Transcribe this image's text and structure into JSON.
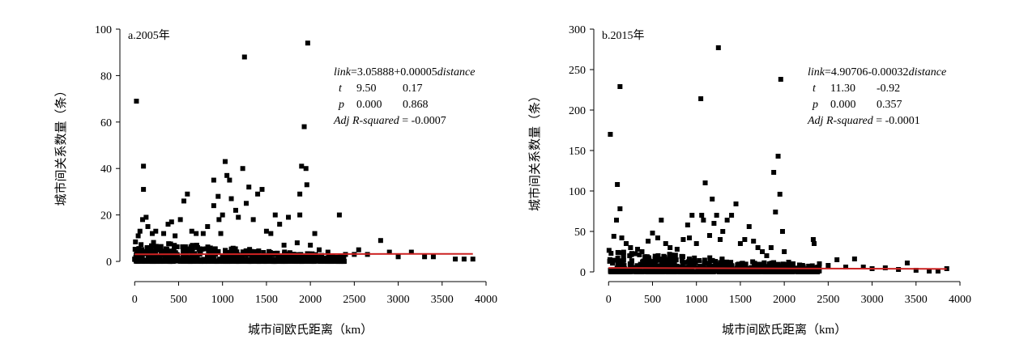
{
  "chart_data": [
    {
      "type": "scatter",
      "panel_label": "a.2005年",
      "xlabel": "城市间欧氏距离（km）",
      "ylabel": "城市间关系数量（条）",
      "xlim": [
        -150,
        4000
      ],
      "ylim": [
        -8,
        100
      ],
      "xticks": [
        "0",
        "500",
        "1000",
        "1500",
        "2000",
        "2500",
        "3000",
        "3500",
        "4000"
      ],
      "yticks": [
        "0",
        "20",
        "40",
        "60",
        "80",
        "100"
      ],
      "marker_color": "#000000",
      "line_color": "#cc2222",
      "regression": {
        "intercept": 3.05888,
        "slope": 5e-05,
        "x_range": [
          0,
          3850
        ]
      },
      "annotation": {
        "equation": {
          "italic_lhs": "link",
          "text": "=3.05888+0.00005",
          "italic_rhs": "distance"
        },
        "t_row": {
          "label": "t",
          "v1": "9.50",
          "v2": "0.17"
        },
        "p_row": {
          "label": "p",
          "v1": "0.000",
          "v2": "0.868"
        },
        "adj_row": {
          "label": "Adj R-squared",
          "value": "= -0.0007"
        }
      },
      "points": [
        {
          "x": 20,
          "y": 69
        },
        {
          "x": 100,
          "y": 41
        },
        {
          "x": 100,
          "y": 31
        },
        {
          "x": 130,
          "y": 19
        },
        {
          "x": 90,
          "y": 18
        },
        {
          "x": 150,
          "y": 15
        },
        {
          "x": 60,
          "y": 13
        },
        {
          "x": 200,
          "y": 12
        },
        {
          "x": 40,
          "y": 11
        },
        {
          "x": 240,
          "y": 13
        },
        {
          "x": 330,
          "y": 12
        },
        {
          "x": 380,
          "y": 16
        },
        {
          "x": 420,
          "y": 17
        },
        {
          "x": 460,
          "y": 11
        },
        {
          "x": 520,
          "y": 18
        },
        {
          "x": 560,
          "y": 26
        },
        {
          "x": 600,
          "y": 29
        },
        {
          "x": 650,
          "y": 13
        },
        {
          "x": 700,
          "y": 12
        },
        {
          "x": 780,
          "y": 12
        },
        {
          "x": 830,
          "y": 15
        },
        {
          "x": 900,
          "y": 35
        },
        {
          "x": 900,
          "y": 24
        },
        {
          "x": 950,
          "y": 28
        },
        {
          "x": 960,
          "y": 18
        },
        {
          "x": 980,
          "y": 12
        },
        {
          "x": 1030,
          "y": 43
        },
        {
          "x": 1050,
          "y": 37
        },
        {
          "x": 1080,
          "y": 35
        },
        {
          "x": 1100,
          "y": 27
        },
        {
          "x": 1000,
          "y": 20
        },
        {
          "x": 1150,
          "y": 22
        },
        {
          "x": 1180,
          "y": 19
        },
        {
          "x": 1230,
          "y": 40
        },
        {
          "x": 1250,
          "y": 88
        },
        {
          "x": 1270,
          "y": 25
        },
        {
          "x": 1300,
          "y": 32
        },
        {
          "x": 1350,
          "y": 18
        },
        {
          "x": 1400,
          "y": 29
        },
        {
          "x": 1450,
          "y": 31
        },
        {
          "x": 1500,
          "y": 13
        },
        {
          "x": 1550,
          "y": 12
        },
        {
          "x": 1600,
          "y": 20
        },
        {
          "x": 1650,
          "y": 16
        },
        {
          "x": 1700,
          "y": 7
        },
        {
          "x": 1750,
          "y": 19
        },
        {
          "x": 1850,
          "y": 8
        },
        {
          "x": 1880,
          "y": 20
        },
        {
          "x": 1880,
          "y": 29
        },
        {
          "x": 1900,
          "y": 41
        },
        {
          "x": 1930,
          "y": 58
        },
        {
          "x": 1950,
          "y": 40
        },
        {
          "x": 1960,
          "y": 33
        },
        {
          "x": 1970,
          "y": 94
        },
        {
          "x": 2000,
          "y": 7
        },
        {
          "x": 2050,
          "y": 12
        },
        {
          "x": 2100,
          "y": 5
        },
        {
          "x": 2200,
          "y": 4
        },
        {
          "x": 2330,
          "y": 20
        },
        {
          "x": 2400,
          "y": 3
        },
        {
          "x": 2500,
          "y": 3
        },
        {
          "x": 2550,
          "y": 5
        },
        {
          "x": 2650,
          "y": 3
        },
        {
          "x": 2800,
          "y": 9
        },
        {
          "x": 2900,
          "y": 4
        },
        {
          "x": 3000,
          "y": 2
        },
        {
          "x": 3150,
          "y": 4
        },
        {
          "x": 3300,
          "y": 2
        },
        {
          "x": 3400,
          "y": 2
        },
        {
          "x": 3650,
          "y": 1
        },
        {
          "x": 3750,
          "y": 1
        },
        {
          "x": 3850,
          "y": 1
        }
      ]
    },
    {
      "type": "scatter",
      "panel_label": "b.2015年",
      "xlabel": "城市间欧氏距离（km）",
      "ylabel": "城市间关系数量（条）",
      "xlim": [
        -150,
        4000
      ],
      "ylim": [
        -10,
        300
      ],
      "xticks": [
        "0",
        "500",
        "1000",
        "1500",
        "2000",
        "2500",
        "3000",
        "3500",
        "4000"
      ],
      "yticks": [
        "0",
        "50",
        "100",
        "150",
        "200",
        "250",
        "300"
      ],
      "marker_color": "#000000",
      "line_color": "#cc2222",
      "regression": {
        "intercept": 4.90706,
        "slope": -0.00032,
        "x_range": [
          0,
          3850
        ]
      },
      "annotation": {
        "equation": {
          "italic_lhs": "link",
          "text": "=4.90706-0.00032",
          "italic_rhs": "distance"
        },
        "t_row": {
          "label": "t",
          "v1": "11.30",
          "v2": "-0.92"
        },
        "p_row": {
          "label": "p",
          "v1": "0.000",
          "v2": "0.357"
        },
        "adj_row": {
          "label": "Adj R-squared",
          "value": "= -0.0001"
        }
      },
      "points": [
        {
          "x": 20,
          "y": 170
        },
        {
          "x": 130,
          "y": 229
        },
        {
          "x": 100,
          "y": 108
        },
        {
          "x": 130,
          "y": 78
        },
        {
          "x": 90,
          "y": 64
        },
        {
          "x": 60,
          "y": 44
        },
        {
          "x": 150,
          "y": 42
        },
        {
          "x": 200,
          "y": 35
        },
        {
          "x": 250,
          "y": 30
        },
        {
          "x": 330,
          "y": 28
        },
        {
          "x": 380,
          "y": 25
        },
        {
          "x": 450,
          "y": 38
        },
        {
          "x": 500,
          "y": 48
        },
        {
          "x": 560,
          "y": 42
        },
        {
          "x": 600,
          "y": 64
        },
        {
          "x": 650,
          "y": 35
        },
        {
          "x": 700,
          "y": 30
        },
        {
          "x": 780,
          "y": 28
        },
        {
          "x": 850,
          "y": 40
        },
        {
          "x": 900,
          "y": 58
        },
        {
          "x": 920,
          "y": 42
        },
        {
          "x": 950,
          "y": 70
        },
        {
          "x": 1000,
          "y": 35
        },
        {
          "x": 1050,
          "y": 214
        },
        {
          "x": 1060,
          "y": 70
        },
        {
          "x": 1080,
          "y": 64
        },
        {
          "x": 1100,
          "y": 110
        },
        {
          "x": 1150,
          "y": 45
        },
        {
          "x": 1180,
          "y": 90
        },
        {
          "x": 1200,
          "y": 60
        },
        {
          "x": 1230,
          "y": 70
        },
        {
          "x": 1250,
          "y": 277
        },
        {
          "x": 1270,
          "y": 40
        },
        {
          "x": 1300,
          "y": 50
        },
        {
          "x": 1350,
          "y": 64
        },
        {
          "x": 1400,
          "y": 70
        },
        {
          "x": 1450,
          "y": 84
        },
        {
          "x": 1500,
          "y": 35
        },
        {
          "x": 1550,
          "y": 40
        },
        {
          "x": 1600,
          "y": 56
        },
        {
          "x": 1650,
          "y": 38
        },
        {
          "x": 1700,
          "y": 30
        },
        {
          "x": 1750,
          "y": 25
        },
        {
          "x": 1800,
          "y": 20
        },
        {
          "x": 1850,
          "y": 30
        },
        {
          "x": 1880,
          "y": 123
        },
        {
          "x": 1900,
          "y": 74
        },
        {
          "x": 1930,
          "y": 143
        },
        {
          "x": 1950,
          "y": 96
        },
        {
          "x": 1960,
          "y": 238
        },
        {
          "x": 1980,
          "y": 50
        },
        {
          "x": 2000,
          "y": 25
        },
        {
          "x": 2050,
          "y": 12
        },
        {
          "x": 2100,
          "y": 10
        },
        {
          "x": 2200,
          "y": 8
        },
        {
          "x": 2330,
          "y": 40
        },
        {
          "x": 2340,
          "y": 35
        },
        {
          "x": 2400,
          "y": 10
        },
        {
          "x": 2500,
          "y": 8
        },
        {
          "x": 2600,
          "y": 15
        },
        {
          "x": 2700,
          "y": 6
        },
        {
          "x": 2800,
          "y": 16
        },
        {
          "x": 2900,
          "y": 6
        },
        {
          "x": 3000,
          "y": 4
        },
        {
          "x": 3150,
          "y": 5
        },
        {
          "x": 3300,
          "y": 3
        },
        {
          "x": 3400,
          "y": 11
        },
        {
          "x": 3500,
          "y": 2
        },
        {
          "x": 3650,
          "y": 1
        },
        {
          "x": 3750,
          "y": 1
        },
        {
          "x": 3850,
          "y": 4
        }
      ]
    }
  ]
}
